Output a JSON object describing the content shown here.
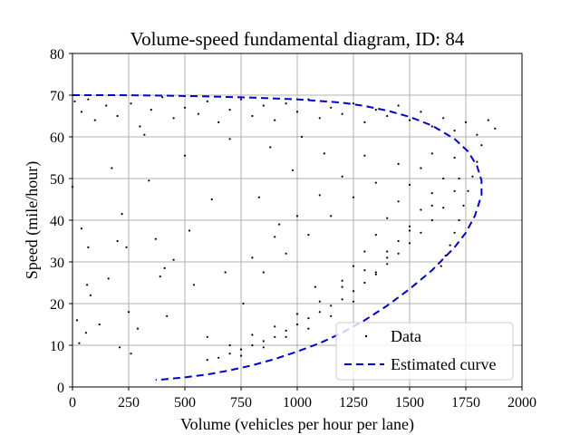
{
  "chart_data": {
    "type": "scatter",
    "title": "Volume-speed fundamental diagram, ID: 84",
    "xlabel": "Volume (vehicles per hour per lane)",
    "ylabel": "Speed (mile/hour)",
    "xlim": [
      0,
      2000
    ],
    "ylim": [
      0,
      80
    ],
    "xticks": [
      0,
      250,
      500,
      750,
      1000,
      1250,
      1500,
      1750,
      2000
    ],
    "yticks": [
      0,
      10,
      20,
      30,
      40,
      50,
      60,
      70,
      80
    ],
    "grid": true,
    "legend_position": "bottom-right",
    "series": [
      {
        "name": "Data",
        "style": "points",
        "color": "#000000",
        "free_flow_points": [
          [
            10,
            68.5
          ],
          [
            40,
            66.0
          ],
          [
            70,
            69.0
          ],
          [
            100,
            64.0
          ],
          [
            150,
            67.5
          ],
          [
            200,
            65.0
          ],
          [
            260,
            68.0
          ],
          [
            300,
            62.5
          ],
          [
            350,
            66.5
          ],
          [
            400,
            69.5
          ],
          [
            450,
            64.5
          ],
          [
            500,
            67.0
          ],
          [
            560,
            65.5
          ],
          [
            600,
            68.5
          ],
          [
            650,
            63.5
          ],
          [
            700,
            66.5
          ],
          [
            750,
            69.0
          ],
          [
            800,
            65.0
          ],
          [
            850,
            67.5
          ],
          [
            900,
            64.0
          ],
          [
            950,
            68.0
          ],
          [
            1000,
            66.0
          ],
          [
            1050,
            69.0
          ],
          [
            1100,
            64.5
          ],
          [
            1150,
            67.0
          ],
          [
            1200,
            65.5
          ],
          [
            1250,
            68.0
          ],
          [
            1300,
            63.5
          ],
          [
            1350,
            66.5
          ],
          [
            1400,
            65.0
          ],
          [
            1450,
            67.5
          ],
          [
            1500,
            64.0
          ],
          [
            1550,
            66.0
          ],
          [
            1600,
            62.5
          ],
          [
            1650,
            64.5
          ],
          [
            1700,
            61.5
          ],
          [
            1750,
            63.5
          ],
          [
            1800,
            60.5
          ],
          [
            1850,
            64.0
          ],
          [
            1880,
            62.0
          ]
        ],
        "transition_points": [
          [
            1820,
            58.0
          ],
          [
            1800,
            54.0
          ],
          [
            1780,
            50.5
          ],
          [
            1760,
            47.0
          ],
          [
            1740,
            43.5
          ],
          [
            1720,
            40.0
          ],
          [
            1700,
            37.0
          ],
          [
            1680,
            34.0
          ],
          [
            1660,
            31.5
          ],
          [
            1640,
            29.0
          ],
          [
            1700,
            55.0
          ],
          [
            1650,
            50.0
          ],
          [
            1600,
            46.5
          ],
          [
            1550,
            42.5
          ],
          [
            1500,
            38.5
          ],
          [
            1450,
            35.0
          ],
          [
            1400,
            31.0
          ],
          [
            1350,
            27.5
          ],
          [
            1550,
            52.5
          ],
          [
            1500,
            48.5
          ],
          [
            1450,
            44.5
          ],
          [
            1400,
            40.5
          ],
          [
            1350,
            36.5
          ],
          [
            1300,
            32.5
          ],
          [
            1250,
            29.0
          ],
          [
            1200,
            25.5
          ],
          [
            1600,
            56.0
          ],
          [
            1450,
            53.5
          ],
          [
            1350,
            49.0
          ],
          [
            1250,
            45.5
          ],
          [
            1150,
            41.0
          ],
          [
            1050,
            36.5
          ],
          [
            950,
            32.0
          ],
          [
            850,
            27.5
          ],
          [
            1300,
            55.5
          ],
          [
            1200,
            50.5
          ],
          [
            1100,
            46.0
          ],
          [
            1000,
            41.0
          ],
          [
            900,
            36.0
          ],
          [
            800,
            31.0
          ]
        ],
        "congested_points": [
          [
            600,
            6.5
          ],
          [
            650,
            7.0
          ],
          [
            700,
            8.0
          ],
          [
            750,
            9.0
          ],
          [
            800,
            10.0
          ],
          [
            850,
            11.0
          ],
          [
            900,
            12.0
          ],
          [
            950,
            13.5
          ],
          [
            1000,
            15.0
          ],
          [
            1050,
            16.5
          ],
          [
            1100,
            18.0
          ],
          [
            1150,
            19.5
          ],
          [
            1200,
            21.0
          ],
          [
            1250,
            23.0
          ],
          [
            1300,
            25.0
          ],
          [
            1350,
            27.0
          ],
          [
            1400,
            29.5
          ],
          [
            1450,
            32.0
          ],
          [
            1500,
            34.5
          ],
          [
            1550,
            37.0
          ],
          [
            1600,
            40.0
          ],
          [
            1650,
            43.0
          ],
          [
            1700,
            47.0
          ],
          [
            1720,
            50.0
          ],
          [
            700,
            10.0
          ],
          [
            800,
            12.5
          ],
          [
            900,
            14.5
          ],
          [
            1000,
            17.5
          ],
          [
            1100,
            20.5
          ],
          [
            1200,
            24.0
          ],
          [
            1300,
            28.0
          ],
          [
            1400,
            32.5
          ],
          [
            1500,
            37.5
          ],
          [
            1600,
            43.5
          ],
          [
            750,
            7.5
          ],
          [
            850,
            9.5
          ],
          [
            950,
            12.0
          ],
          [
            1050,
            14.0
          ],
          [
            1150,
            17.0
          ],
          [
            1250,
            20.5
          ]
        ],
        "scattered_points": [
          [
            0,
            48.0
          ],
          [
            20,
            16.0
          ],
          [
            30,
            10.5
          ],
          [
            40,
            38.0
          ],
          [
            60,
            13.0
          ],
          [
            65,
            24.5
          ],
          [
            70,
            33.5
          ],
          [
            80,
            22.0
          ],
          [
            120,
            15.0
          ],
          [
            160,
            26.0
          ],
          [
            175,
            52.5
          ],
          [
            200,
            35.0
          ],
          [
            210,
            9.5
          ],
          [
            220,
            41.5
          ],
          [
            240,
            33.5
          ],
          [
            250,
            18.0
          ],
          [
            260,
            8.0
          ],
          [
            290,
            14.0
          ],
          [
            320,
            60.5
          ],
          [
            340,
            49.5
          ],
          [
            370,
            35.5
          ],
          [
            390,
            26.5
          ],
          [
            410,
            28.5
          ],
          [
            420,
            17.0
          ],
          [
            450,
            30.5
          ],
          [
            500,
            55.5
          ],
          [
            520,
            37.5
          ],
          [
            540,
            24.5
          ],
          [
            600,
            12.0
          ],
          [
            620,
            45.0
          ],
          [
            680,
            27.5
          ],
          [
            700,
            59.5
          ],
          [
            760,
            20.0
          ],
          [
            830,
            45.5
          ],
          [
            880,
            57.5
          ],
          [
            920,
            39.0
          ],
          [
            980,
            52.0
          ],
          [
            1020,
            60.0
          ],
          [
            1080,
            24.0
          ],
          [
            1120,
            56.0
          ]
        ]
      },
      {
        "name": "Estimated curve",
        "style": "dashed",
        "color": "#0000cc",
        "points": [
          [
            0,
            70.0
          ],
          [
            200,
            70.0
          ],
          [
            400,
            69.9
          ],
          [
            600,
            69.7
          ],
          [
            800,
            69.4
          ],
          [
            1000,
            69.0
          ],
          [
            1200,
            68.2
          ],
          [
            1300,
            67.4
          ],
          [
            1400,
            66.3
          ],
          [
            1500,
            64.8
          ],
          [
            1600,
            62.7
          ],
          [
            1700,
            59.5
          ],
          [
            1760,
            56.5
          ],
          [
            1800,
            53.0
          ],
          [
            1820,
            49.5
          ],
          [
            1820,
            46.0
          ],
          [
            1790,
            41.0
          ],
          [
            1750,
            37.0
          ],
          [
            1700,
            33.5
          ],
          [
            1600,
            28.0
          ],
          [
            1500,
            23.5
          ],
          [
            1400,
            19.5
          ],
          [
            1300,
            16.0
          ],
          [
            1200,
            13.0
          ],
          [
            1100,
            10.5
          ],
          [
            1000,
            8.5
          ],
          [
            900,
            6.7
          ],
          [
            800,
            5.2
          ],
          [
            700,
            4.0
          ],
          [
            600,
            3.0
          ],
          [
            500,
            2.3
          ],
          [
            400,
            1.8
          ],
          [
            370,
            1.7
          ]
        ]
      }
    ]
  }
}
